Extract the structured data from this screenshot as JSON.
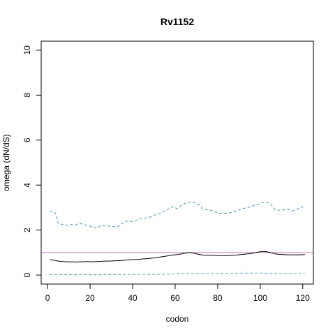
{
  "chart_data": {
    "type": "line",
    "title": "Rv1152",
    "xlabel": "codon",
    "ylabel": "omega (dN/dS)",
    "xlim": [
      -3,
      125
    ],
    "ylim": [
      -0.4,
      10.4
    ],
    "xticks": [
      0,
      20,
      40,
      60,
      80,
      100,
      120
    ],
    "yticks": [
      0,
      2,
      4,
      6,
      8,
      10
    ],
    "grid": false,
    "reference_line": {
      "y": 1,
      "color": "#c080c0"
    },
    "series": [
      {
        "style": "dashed",
        "color": "#3a9ad9",
        "points": [
          [
            1,
            2.82
          ],
          [
            3,
            2.82
          ],
          [
            4,
            2.7
          ],
          [
            5,
            2.3
          ],
          [
            7,
            2.25
          ],
          [
            9,
            2.22
          ],
          [
            11,
            2.25
          ],
          [
            13,
            2.22
          ],
          [
            15,
            2.3
          ],
          [
            17,
            2.25
          ],
          [
            19,
            2.2
          ],
          [
            21,
            2.15
          ],
          [
            23,
            2.08
          ],
          [
            25,
            2.2
          ],
          [
            27,
            2.2
          ],
          [
            29,
            2.18
          ],
          [
            31,
            2.15
          ],
          [
            33,
            2.15
          ],
          [
            35,
            2.3
          ],
          [
            37,
            2.4
          ],
          [
            39,
            2.38
          ],
          [
            41,
            2.4
          ],
          [
            43,
            2.5
          ],
          [
            45,
            2.52
          ],
          [
            47,
            2.55
          ],
          [
            49,
            2.6
          ],
          [
            51,
            2.7
          ],
          [
            53,
            2.75
          ],
          [
            55,
            2.85
          ],
          [
            57,
            2.95
          ],
          [
            59,
            3.05
          ],
          [
            61,
            2.95
          ],
          [
            63,
            3.1
          ],
          [
            65,
            3.2
          ],
          [
            67,
            3.25
          ],
          [
            69,
            3.22
          ],
          [
            71,
            3.15
          ],
          [
            73,
            2.95
          ],
          [
            75,
            2.9
          ],
          [
            77,
            2.88
          ],
          [
            79,
            2.8
          ],
          [
            81,
            2.75
          ],
          [
            83,
            2.75
          ],
          [
            85,
            2.75
          ],
          [
            87,
            2.8
          ],
          [
            89,
            2.85
          ],
          [
            91,
            2.95
          ],
          [
            93,
            2.98
          ],
          [
            95,
            3.02
          ],
          [
            97,
            3.1
          ],
          [
            99,
            3.15
          ],
          [
            101,
            3.22
          ],
          [
            103,
            3.25
          ],
          [
            105,
            3.15
          ],
          [
            107,
            2.9
          ],
          [
            109,
            2.88
          ],
          [
            111,
            2.9
          ],
          [
            113,
            2.92
          ],
          [
            115,
            2.85
          ],
          [
            117,
            2.92
          ],
          [
            119,
            3.0
          ],
          [
            121,
            3.05
          ]
        ]
      },
      {
        "style": "solid",
        "color": "#000000",
        "points": [
          [
            1,
            0.68
          ],
          [
            3,
            0.66
          ],
          [
            5,
            0.62
          ],
          [
            7,
            0.6
          ],
          [
            9,
            0.59
          ],
          [
            11,
            0.59
          ],
          [
            13,
            0.58
          ],
          [
            15,
            0.59
          ],
          [
            17,
            0.59
          ],
          [
            19,
            0.6
          ],
          [
            21,
            0.59
          ],
          [
            23,
            0.6
          ],
          [
            25,
            0.61
          ],
          [
            27,
            0.62
          ],
          [
            29,
            0.62
          ],
          [
            31,
            0.63
          ],
          [
            33,
            0.64
          ],
          [
            35,
            0.65
          ],
          [
            37,
            0.67
          ],
          [
            39,
            0.68
          ],
          [
            41,
            0.69
          ],
          [
            43,
            0.7
          ],
          [
            45,
            0.72
          ],
          [
            47,
            0.73
          ],
          [
            49,
            0.75
          ],
          [
            51,
            0.77
          ],
          [
            53,
            0.8
          ],
          [
            55,
            0.83
          ],
          [
            57,
            0.86
          ],
          [
            59,
            0.89
          ],
          [
            61,
            0.91
          ],
          [
            63,
            0.94
          ],
          [
            65,
            0.98
          ],
          [
            67,
            1.0
          ],
          [
            69,
            0.97
          ],
          [
            71,
            0.92
          ],
          [
            73,
            0.89
          ],
          [
            75,
            0.88
          ],
          [
            77,
            0.88
          ],
          [
            79,
            0.87
          ],
          [
            81,
            0.86
          ],
          [
            83,
            0.86
          ],
          [
            85,
            0.87
          ],
          [
            87,
            0.88
          ],
          [
            89,
            0.89
          ],
          [
            91,
            0.91
          ],
          [
            93,
            0.93
          ],
          [
            95,
            0.95
          ],
          [
            97,
            0.98
          ],
          [
            99,
            1.02
          ],
          [
            101,
            1.05
          ],
          [
            103,
            1.04
          ],
          [
            105,
            0.99
          ],
          [
            107,
            0.94
          ],
          [
            109,
            0.92
          ],
          [
            111,
            0.91
          ],
          [
            113,
            0.9
          ],
          [
            115,
            0.9
          ],
          [
            117,
            0.9
          ],
          [
            119,
            0.9
          ],
          [
            121,
            0.91
          ]
        ]
      },
      {
        "style": "dashed",
        "color": "#3ab8d0",
        "points": [
          [
            1,
            0.02
          ],
          [
            10,
            0.02
          ],
          [
            20,
            0.02
          ],
          [
            30,
            0.02
          ],
          [
            40,
            0.03
          ],
          [
            50,
            0.03
          ],
          [
            58,
            0.04
          ],
          [
            62,
            0.07
          ],
          [
            70,
            0.07
          ],
          [
            80,
            0.07
          ],
          [
            90,
            0.08
          ],
          [
            100,
            0.09
          ],
          [
            105,
            0.08
          ],
          [
            110,
            0.07
          ],
          [
            121,
            0.07
          ]
        ]
      }
    ]
  }
}
